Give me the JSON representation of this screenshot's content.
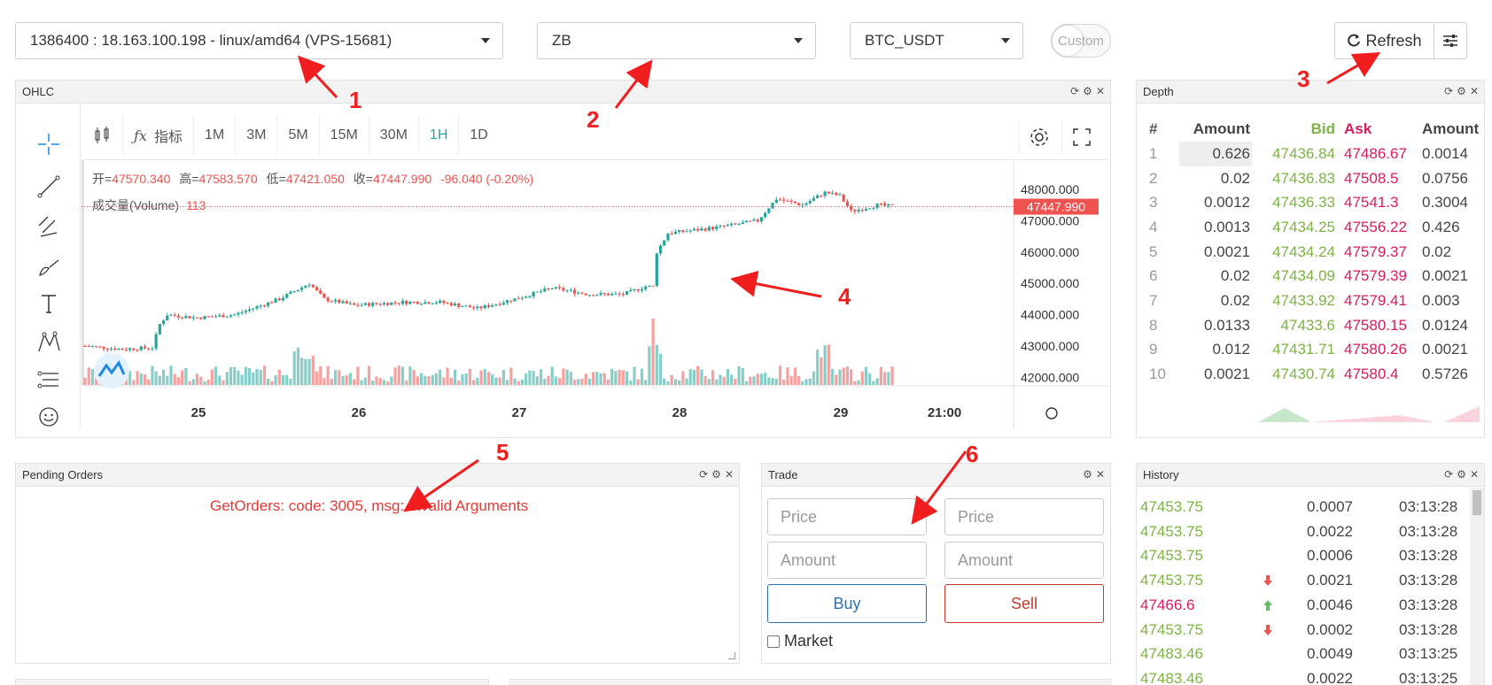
{
  "colors": {
    "up": "#26a69a",
    "down": "#ef5350",
    "bid": "#7cb342",
    "ask": "#d81b60",
    "error": "#e53935",
    "annotation": "#f01e1e"
  },
  "controls": {
    "robot_select": "1386400 : 18.163.100.198 - linux/amd64 (VPS-15681)",
    "exchange_select": "ZB",
    "pair_select": "BTC_USDT",
    "custom_toggle": "Custom",
    "refresh_label": "Refresh"
  },
  "ohlc": {
    "title": "OHLC",
    "indicator_label": "指标",
    "intervals": [
      "1M",
      "3M",
      "5M",
      "15M",
      "30M",
      "1H",
      "1D"
    ],
    "active_interval": "1H",
    "legend": {
      "open_label": "开=",
      "open": "47570.340",
      "high_label": "高=",
      "high": "47583.570",
      "low_label": "低=",
      "low": "47421.050",
      "close_label": "收=",
      "close": "47447.990",
      "change": "-96.040 (-0.20%)"
    },
    "volume_label": "成交量(Volume)",
    "volume_value": "113",
    "price_ticks": [
      "48000.000",
      "47000.000",
      "46000.000",
      "45000.000",
      "44000.000",
      "43000.000",
      "42000.000"
    ],
    "price_tick_values": [
      48000,
      47000,
      46000,
      45000,
      44000,
      43000,
      42000
    ],
    "last_price": "47447.990",
    "x_ticks": [
      "25",
      "26",
      "27",
      "28",
      "29",
      "21:00"
    ]
  },
  "depth": {
    "title": "Depth",
    "headers": [
      "#",
      "Amount",
      "Bid",
      "Ask",
      "Amount"
    ],
    "rows": [
      [
        "1",
        "0.626",
        "47436.84",
        "47486.67",
        "0.0014"
      ],
      [
        "2",
        "0.02",
        "47436.83",
        "47508.5",
        "0.0756"
      ],
      [
        "3",
        "0.0012",
        "47436.33",
        "47541.3",
        "0.3004"
      ],
      [
        "4",
        "0.0013",
        "47434.25",
        "47556.22",
        "0.426"
      ],
      [
        "5",
        "0.0021",
        "47434.24",
        "47579.37",
        "0.02"
      ],
      [
        "6",
        "0.02",
        "47434.09",
        "47579.39",
        "0.0021"
      ],
      [
        "7",
        "0.02",
        "47433.92",
        "47579.41",
        "0.003"
      ],
      [
        "8",
        "0.0133",
        "47433.6",
        "47580.15",
        "0.0124"
      ],
      [
        "9",
        "0.012",
        "47431.71",
        "47580.26",
        "0.0021"
      ],
      [
        "10",
        "0.0021",
        "47430.74",
        "47580.4",
        "0.5726"
      ]
    ]
  },
  "pending": {
    "title": "Pending Orders",
    "error": "GetOrders: code: 3005, msg: Invalid Arguments"
  },
  "trade": {
    "title": "Trade",
    "price_placeholder": "Price",
    "amount_placeholder": "Amount",
    "buy_label": "Buy",
    "sell_label": "Sell",
    "market_label": "Market"
  },
  "history": {
    "title": "History",
    "rows": [
      {
        "price": "47453.75",
        "side": "",
        "amount": "0.0007",
        "time": "03:13:28"
      },
      {
        "price": "47453.75",
        "side": "",
        "amount": "0.0022",
        "time": "03:13:28"
      },
      {
        "price": "47453.75",
        "side": "",
        "amount": "0.0006",
        "time": "03:13:28"
      },
      {
        "price": "47453.75",
        "side": "down",
        "amount": "0.0021",
        "time": "03:13:28"
      },
      {
        "price": "47466.6",
        "side": "up",
        "amount": "0.0046",
        "time": "03:13:28"
      },
      {
        "price": "47453.75",
        "side": "down",
        "amount": "0.0002",
        "time": "03:13:28"
      },
      {
        "price": "47483.46",
        "side": "",
        "amount": "0.0049",
        "time": "03:13:25"
      },
      {
        "price": "47483.46",
        "side": "",
        "amount": "0.0022",
        "time": "03:13:25"
      }
    ]
  },
  "annotations": [
    "1",
    "2",
    "3",
    "4",
    "5",
    "6"
  ]
}
